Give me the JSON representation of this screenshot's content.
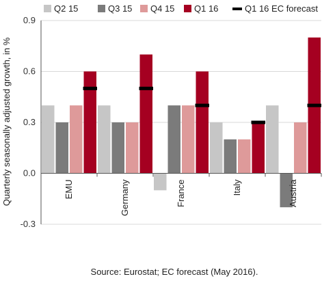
{
  "chart_data": {
    "type": "bar",
    "categories": [
      "EMU",
      "Germany",
      "France",
      "Italy",
      "Austria"
    ],
    "series": [
      {
        "name": "Q2 15",
        "color": "#c6c6c6",
        "values": [
          0.4,
          0.4,
          -0.1,
          0.3,
          0.4
        ]
      },
      {
        "name": "Q3 15",
        "color": "#7b7b7b",
        "values": [
          0.3,
          0.3,
          0.4,
          0.2,
          -0.2
        ]
      },
      {
        "name": "Q4 15",
        "color": "#de9a9a",
        "values": [
          0.4,
          0.3,
          0.4,
          0.2,
          0.3
        ]
      },
      {
        "name": "Q1 16",
        "color": "#a50021",
        "values": [
          0.6,
          0.7,
          0.6,
          0.3,
          0.8
        ]
      }
    ],
    "forecast": {
      "name": "Q1 16  EC forecast",
      "color": "#000000",
      "values": [
        0.5,
        0.5,
        0.4,
        0.3,
        0.4
      ]
    },
    "ylabel": "Quarterly seasonally adjusted growth, in %",
    "ylim": [
      -0.3,
      0.9
    ],
    "yticks": [
      "-0.3",
      "0.0",
      "0.3",
      "0.6",
      "0.9"
    ],
    "grid": true,
    "legend": "top",
    "source": "Source: Eurostat; EC forecast (May 2016)."
  }
}
